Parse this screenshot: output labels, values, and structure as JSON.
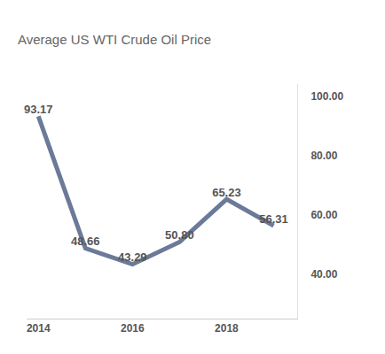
{
  "chart_data": {
    "type": "line",
    "title": "Average US WTI Crude Oil Price",
    "x": [
      2014,
      2015,
      2016,
      2017,
      2018,
      2019
    ],
    "values": [
      93.17,
      48.66,
      43.29,
      50.8,
      65.23,
      56.31
    ],
    "value_labels": [
      "93.17",
      "48.66",
      "43.29",
      "50.80",
      "65.23",
      "56.31"
    ],
    "color": "#6b7a99",
    "xlim": [
      2013.75,
      2019.5
    ],
    "xticks": [
      2014,
      2016,
      2018
    ],
    "ylim": [
      25,
      104
    ],
    "yticks": [
      {
        "value": 40,
        "label": "40.00"
      },
      {
        "value": 60,
        "label": "60.00"
      },
      {
        "value": 80,
        "label": "80.00"
      },
      {
        "value": 100,
        "label": "100.00"
      }
    ],
    "grid": false,
    "data_labels": true
  }
}
